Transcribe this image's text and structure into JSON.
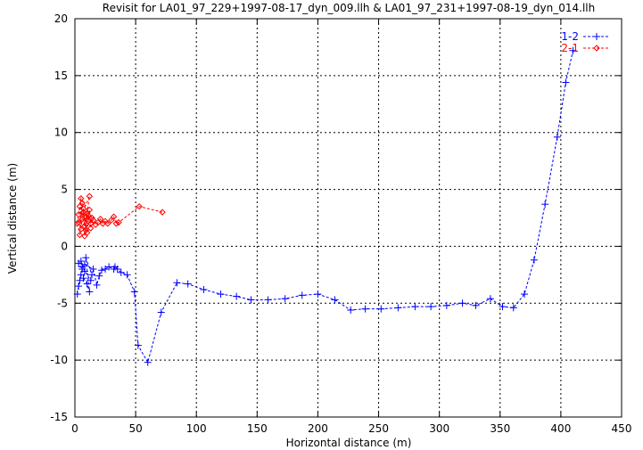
{
  "chart_data": {
    "type": "scatter",
    "title": "Revisit for LA01_97_229+1997-08-17_dyn_009.llh & LA01_97_231+1997-08-19_dyn_014.llh",
    "xlabel": "Horizontal distance (m)",
    "ylabel": "Vertical distance (m)",
    "xlim": [
      0,
      450
    ],
    "ylim": [
      -15,
      20
    ],
    "xticks": [
      "0",
      "50",
      "100",
      "150",
      "200",
      "250",
      "300",
      "350",
      "400",
      "450"
    ],
    "yticks": [
      "-15",
      "-10",
      "-5",
      "0",
      "5",
      "10",
      "15",
      "20"
    ],
    "grid": true,
    "legend_position": "top-right",
    "series": [
      {
        "name": "1-2",
        "color": "#0000ff",
        "marker": "plus",
        "line": "dashed",
        "x": [
          2,
          3,
          4,
          5,
          6,
          3,
          5,
          8,
          7,
          10,
          12,
          9,
          14,
          13,
          6,
          8,
          15,
          18,
          20,
          22,
          25,
          28,
          32,
          33,
          35,
          38,
          43,
          49,
          52,
          60,
          71,
          84,
          93,
          106,
          120,
          133,
          145,
          159,
          173,
          187,
          200,
          214,
          227,
          239,
          252,
          266,
          280,
          293,
          306,
          319,
          330,
          342,
          352,
          361,
          370,
          378,
          387,
          397,
          404,
          410
        ],
        "y": [
          -4.2,
          -3.5,
          -3.0,
          -2.5,
          -2.0,
          -1.5,
          -1.3,
          -2.2,
          -2.8,
          -3.3,
          -4.0,
          -1.0,
          -2.5,
          -3.0,
          -1.8,
          -1.6,
          -2.0,
          -3.4,
          -2.6,
          -2.1,
          -2.0,
          -1.8,
          -2.0,
          -1.8,
          -2.0,
          -2.3,
          -2.5,
          -4.0,
          -8.7,
          -10.2,
          -5.8,
          -3.2,
          -3.3,
          -3.8,
          -4.2,
          -4.4,
          -4.7,
          -4.7,
          -4.6,
          -4.3,
          -4.2,
          -4.7,
          -5.6,
          -5.5,
          -5.5,
          -5.4,
          -5.3,
          -5.3,
          -5.2,
          -5.0,
          -5.2,
          -4.6,
          -5.3,
          -5.4,
          -4.2,
          -1.2,
          3.7,
          9.6,
          14.4,
          17.2
        ]
      },
      {
        "name": "2-1",
        "color": "#ff0000",
        "marker": "diamond",
        "line": "dashed",
        "x": [
          2,
          3,
          4,
          5,
          6,
          7,
          8,
          9,
          10,
          11,
          12,
          13,
          14,
          5,
          4,
          6,
          8,
          10,
          12,
          3,
          7,
          9,
          11,
          13,
          15,
          17,
          19,
          21,
          23,
          25,
          27,
          30,
          32,
          34,
          36,
          53,
          72
        ],
        "y": [
          2.0,
          2.8,
          3.5,
          1.5,
          2.4,
          3.0,
          1.8,
          2.6,
          1.2,
          2.2,
          3.2,
          1.6,
          2.5,
          4.2,
          1.0,
          3.8,
          0.9,
          2.9,
          4.4,
          2.1,
          3.3,
          1.4,
          2.7,
          2.0,
          2.3,
          1.9,
          2.1,
          2.4,
          2.0,
          2.2,
          2.0,
          2.3,
          2.6,
          2.0,
          2.1,
          3.5,
          3.0
        ]
      }
    ]
  }
}
